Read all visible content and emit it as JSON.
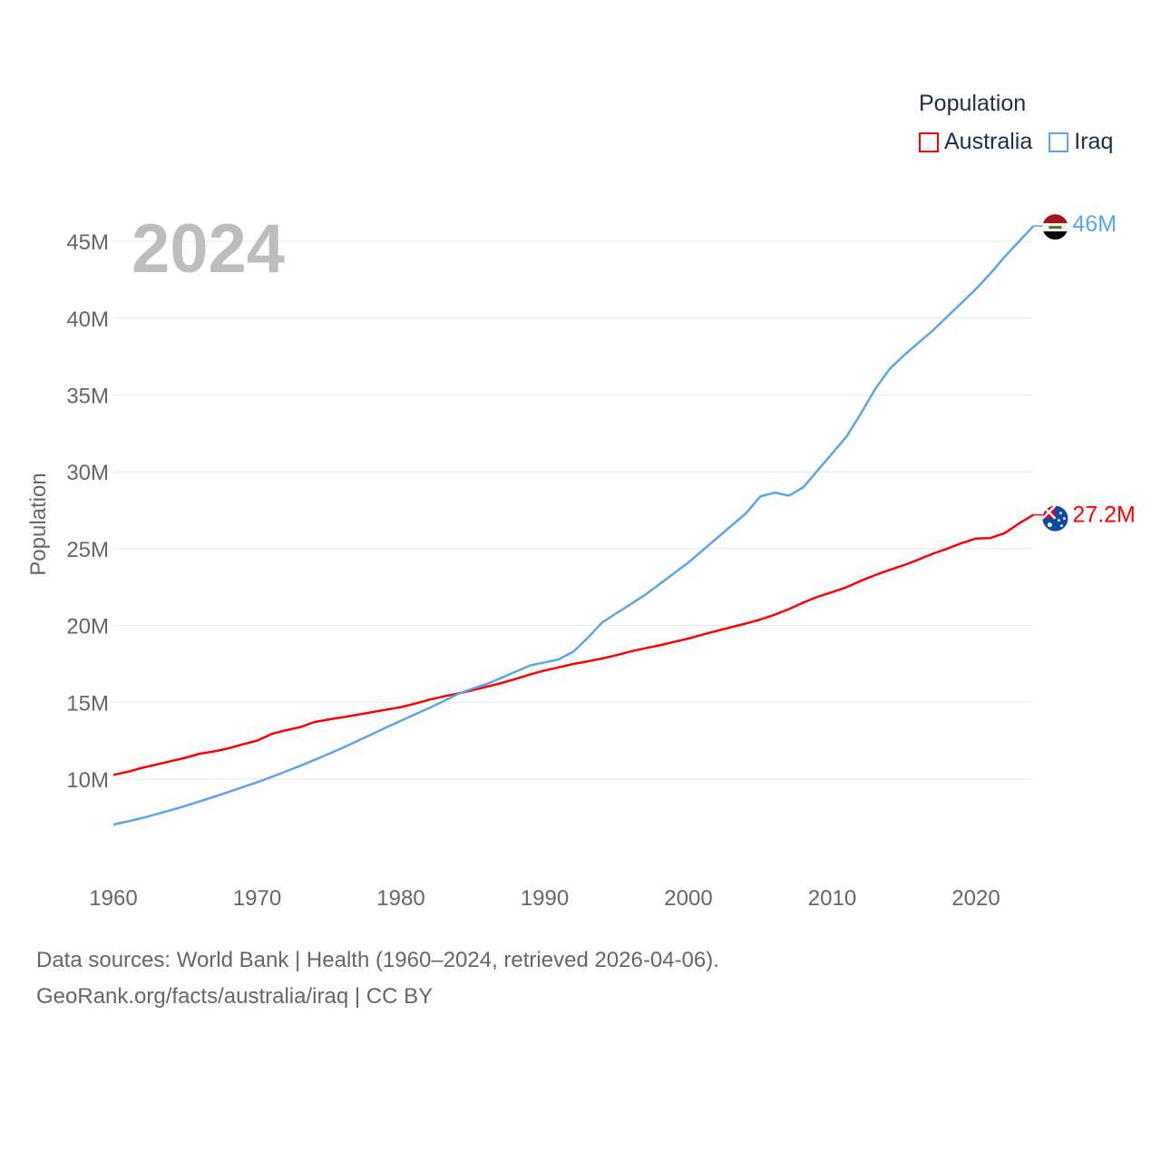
{
  "chart_data": {
    "type": "line",
    "title": "2024",
    "xlabel": "",
    "ylabel": "Population",
    "xlim": [
      1960,
      2024
    ],
    "ylim": [
      7,
      47
    ],
    "x_ticks": [
      "1960",
      "1970",
      "1980",
      "1990",
      "2000",
      "2010",
      "2020"
    ],
    "y_ticks": [
      {
        "value": 10,
        "label": "10M"
      },
      {
        "value": 15,
        "label": "15M"
      },
      {
        "value": 20,
        "label": "20M"
      },
      {
        "value": 25,
        "label": "25M"
      },
      {
        "value": 30,
        "label": "30M"
      },
      {
        "value": 35,
        "label": "35M"
      },
      {
        "value": 40,
        "label": "40M"
      },
      {
        "value": 45,
        "label": "45M"
      }
    ],
    "grid": true,
    "legend_title": "Population",
    "legend_position": "top-right",
    "x": [
      1960,
      1961,
      1962,
      1963,
      1964,
      1965,
      1966,
      1967,
      1968,
      1969,
      1970,
      1971,
      1972,
      1973,
      1974,
      1975,
      1976,
      1977,
      1978,
      1979,
      1980,
      1981,
      1982,
      1983,
      1984,
      1985,
      1986,
      1987,
      1988,
      1989,
      1990,
      1991,
      1992,
      1993,
      1994,
      1995,
      1996,
      1997,
      1998,
      1999,
      2000,
      2001,
      2002,
      2003,
      2004,
      2005,
      2006,
      2007,
      2008,
      2009,
      2010,
      2011,
      2012,
      2013,
      2014,
      2015,
      2016,
      2017,
      2018,
      2019,
      2020,
      2021,
      2022,
      2023,
      2024
    ],
    "series": [
      {
        "name": "Australia",
        "color": "#ff0000",
        "end_label": "27.2M",
        "values": [
          10.28,
          10.48,
          10.74,
          10.95,
          11.17,
          11.39,
          11.65,
          11.8,
          12.01,
          12.26,
          12.51,
          12.94,
          13.18,
          13.38,
          13.72,
          13.89,
          14.03,
          14.19,
          14.36,
          14.52,
          14.69,
          14.92,
          15.18,
          15.39,
          15.58,
          15.79,
          16.02,
          16.26,
          16.53,
          16.81,
          17.07,
          17.28,
          17.5,
          17.67,
          17.85,
          18.07,
          18.31,
          18.52,
          18.71,
          18.93,
          19.15,
          19.41,
          19.65,
          19.9,
          20.13,
          20.39,
          20.7,
          21.07,
          21.5,
          21.87,
          22.17,
          22.49,
          22.91,
          23.28,
          23.62,
          23.93,
          24.29,
          24.67,
          25.0,
          25.36,
          25.66,
          25.69,
          26.01,
          26.64,
          27.2
        ]
      },
      {
        "name": "Iraq",
        "color": "#5aa5ee",
        "end_label": "46M",
        "values": [
          7.05,
          7.25,
          7.47,
          7.72,
          7.98,
          8.26,
          8.55,
          8.85,
          9.16,
          9.48,
          9.8,
          10.14,
          10.5,
          10.87,
          11.26,
          11.65,
          12.06,
          12.49,
          12.93,
          13.37,
          13.8,
          14.22,
          14.64,
          15.09,
          15.55,
          15.9,
          16.2,
          16.6,
          17.0,
          17.4,
          17.6,
          17.8,
          18.3,
          19.2,
          20.2,
          20.8,
          21.4,
          22.0,
          22.7,
          23.4,
          24.1,
          24.9,
          25.7,
          26.5,
          27.3,
          28.4,
          28.65,
          28.45,
          29.0,
          30.1,
          31.2,
          32.3,
          33.8,
          35.4,
          36.7,
          37.6,
          38.4,
          39.2,
          40.1,
          41.0,
          41.9,
          42.9,
          44.0,
          45.0,
          46.0
        ]
      }
    ]
  },
  "footer": {
    "line1": "Data sources: World Bank | Health (1960–2024, retrieved 2026-04-06).",
    "line2": "GeoRank.org/facts/australia/iraq | CC BY"
  }
}
